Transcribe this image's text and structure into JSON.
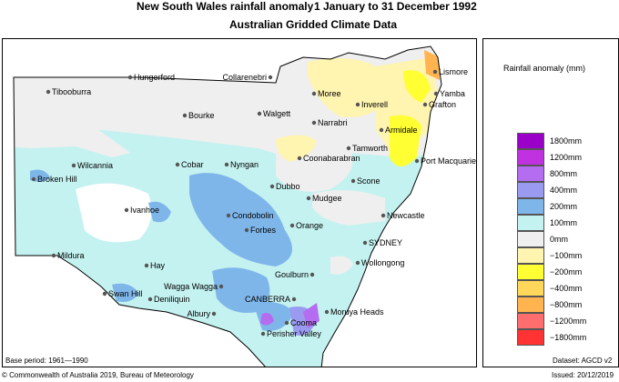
{
  "title": {
    "main": "New South Wales rainfall anomaly",
    "period": "1 January to 31 December 1992",
    "subtitle": "Australian Gridded Climate Data"
  },
  "legend": {
    "title": "Rainfall anomaly (mm)",
    "bins": [
      {
        "label": "1800mm",
        "color": "#9b00c8"
      },
      {
        "label": "1200mm",
        "color": "#c032e0"
      },
      {
        "label": "800mm",
        "color": "#b46cf0"
      },
      {
        "label": "400mm",
        "color": "#9a9af0"
      },
      {
        "label": "200mm",
        "color": "#7fb6ea"
      },
      {
        "label": "100mm",
        "color": "#c4f2f0"
      },
      {
        "label": "0mm",
        "color": "#efefef"
      },
      {
        "label": "−100mm",
        "color": "#fff4b0"
      },
      {
        "label": "−200mm",
        "color": "#ffff33"
      },
      {
        "label": "−400mm",
        "color": "#ffd75a"
      },
      {
        "label": "−800mm",
        "color": "#ffb450"
      },
      {
        "label": "−1200mm",
        "color": "#ff6e6e"
      },
      {
        "label": "−1800mm",
        "color": "#ff3333"
      }
    ]
  },
  "places": [
    {
      "name": "Hungerford"
    },
    {
      "name": "Tibooburra"
    },
    {
      "name": "Collarenebri"
    },
    {
      "name": "Moree"
    },
    {
      "name": "Lismore"
    },
    {
      "name": "Yamba"
    },
    {
      "name": "Grafton"
    },
    {
      "name": "Inverell"
    },
    {
      "name": "Bourke"
    },
    {
      "name": "Walgett"
    },
    {
      "name": "Narrabri"
    },
    {
      "name": "Armidale"
    },
    {
      "name": "Tamworth"
    },
    {
      "name": "Coonabarabran"
    },
    {
      "name": "Port Macquarie"
    },
    {
      "name": "Broken Hill"
    },
    {
      "name": "Wilcannia"
    },
    {
      "name": "Cobar"
    },
    {
      "name": "Nyngan"
    },
    {
      "name": "Scone"
    },
    {
      "name": "Dubbo"
    },
    {
      "name": "Mudgee"
    },
    {
      "name": "Ivanhoe"
    },
    {
      "name": "Condobolin"
    },
    {
      "name": "Orange"
    },
    {
      "name": "Newcastle"
    },
    {
      "name": "Forbes"
    },
    {
      "name": "SYDNEY"
    },
    {
      "name": "Mildura"
    },
    {
      "name": "Hay"
    },
    {
      "name": "Wollongong"
    },
    {
      "name": "Goulburn"
    },
    {
      "name": "Wagga Wagga"
    },
    {
      "name": "Swan Hill"
    },
    {
      "name": "Deniliquin"
    },
    {
      "name": "CANBERRA"
    },
    {
      "name": "Albury"
    },
    {
      "name": "Moruya Heads"
    },
    {
      "name": "Cooma"
    },
    {
      "name": "Perisher Valley"
    }
  ],
  "footer": {
    "base_period": "Base period: 1961—1990",
    "dataset": "Dataset: AGCD v2",
    "copyright": "© Commonwealth of Australia 2019, Bureau of Meteorology",
    "issued": "Issued: 20/12/2019"
  }
}
